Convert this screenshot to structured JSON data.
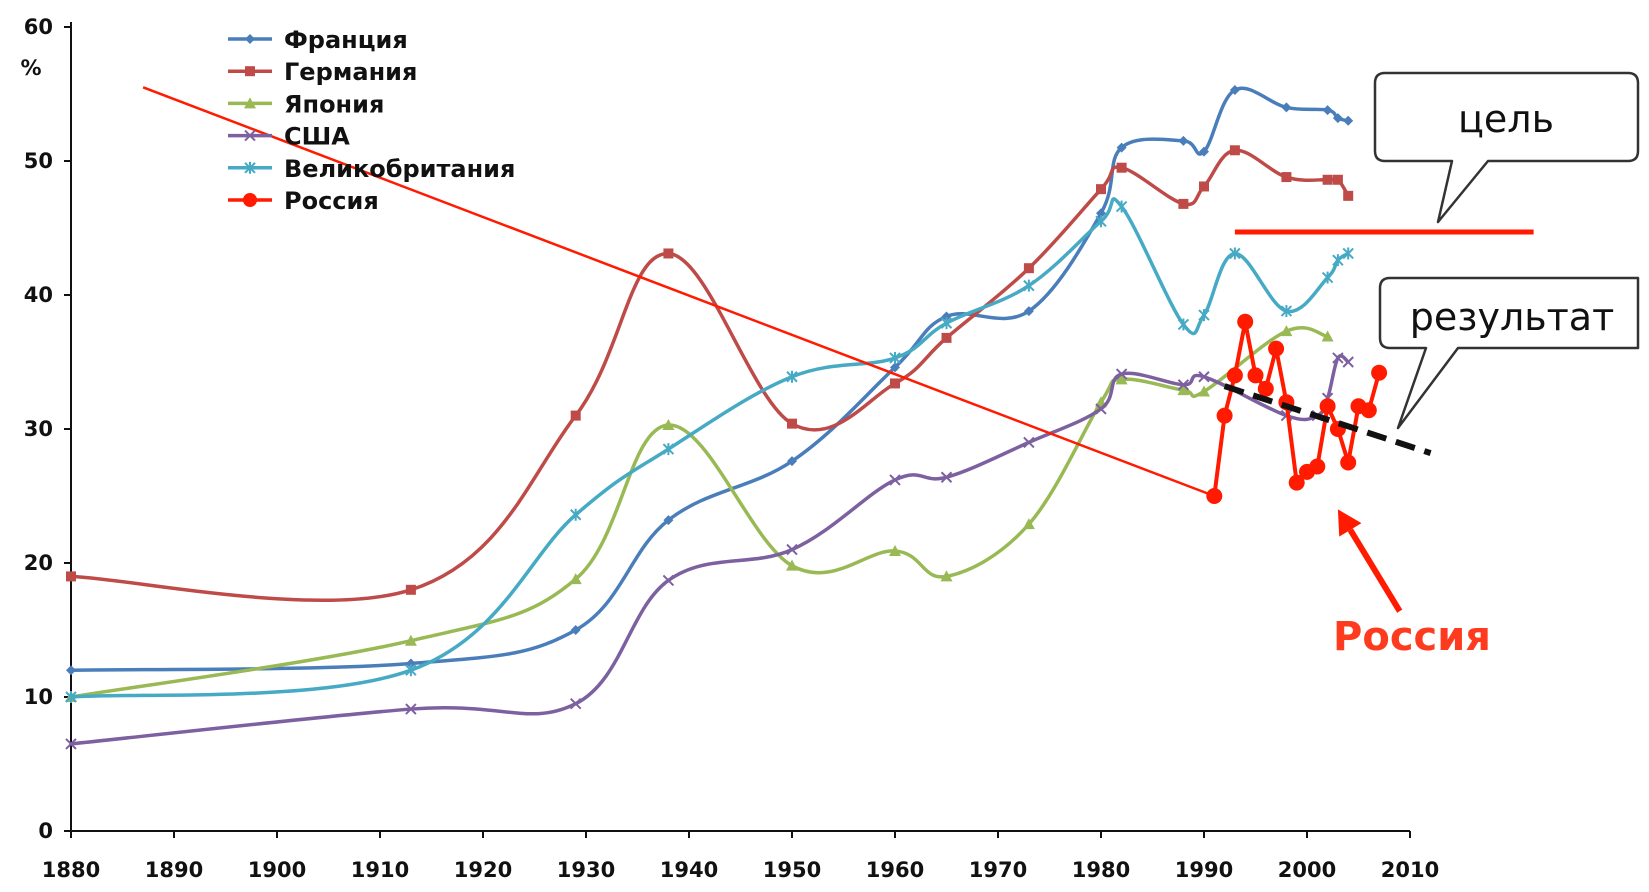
{
  "chart_data": {
    "type": "line",
    "ylabel": "%",
    "xlim": [
      1880,
      2010
    ],
    "ylim": [
      0,
      60
    ],
    "x_ticks": [
      "1880",
      "1890",
      "1900",
      "1910",
      "1920",
      "1930",
      "1940",
      "1950",
      "1960",
      "1970",
      "1980",
      "1990",
      "2000",
      "2010"
    ],
    "y_ticks": [
      "0",
      "10",
      "20",
      "30",
      "40",
      "50",
      "60"
    ],
    "grid": false,
    "legend_position": "top-left",
    "series": [
      {
        "name": "Франция",
        "color": "#4a7ebb",
        "marker": "diamond",
        "points": [
          [
            1880,
            12
          ],
          [
            1913,
            12.5
          ],
          [
            1929,
            15
          ],
          [
            1938,
            23.2
          ],
          [
            1950,
            27.6
          ],
          [
            1960,
            34.6
          ],
          [
            1965,
            38.4
          ],
          [
            1973,
            38.8
          ],
          [
            1980,
            46.1
          ],
          [
            1982,
            51
          ],
          [
            1988,
            51.5
          ],
          [
            1990,
            50.7
          ],
          [
            1993,
            55.3
          ],
          [
            1998,
            54
          ],
          [
            2002,
            53.8
          ],
          [
            2003,
            53.2
          ],
          [
            2004,
            53
          ]
        ]
      },
      {
        "name": "Германия",
        "color": "#be4b48",
        "marker": "square",
        "points": [
          [
            1880,
            19
          ],
          [
            1913,
            18
          ],
          [
            1929,
            31
          ],
          [
            1938,
            43.1
          ],
          [
            1950,
            30.4
          ],
          [
            1960,
            33.4
          ],
          [
            1965,
            36.8
          ],
          [
            1973,
            42
          ],
          [
            1980,
            47.9
          ],
          [
            1982,
            49.5
          ],
          [
            1988,
            46.8
          ],
          [
            1990,
            48.1
          ],
          [
            1993,
            50.8
          ],
          [
            1998,
            48.8
          ],
          [
            2002,
            48.6
          ],
          [
            2003,
            48.6
          ],
          [
            2004,
            47.4
          ]
        ]
      },
      {
        "name": "Япония",
        "color": "#98b954",
        "marker": "triangle",
        "points": [
          [
            1880,
            10
          ],
          [
            1913,
            14.2
          ],
          [
            1929,
            18.8
          ],
          [
            1938,
            30.3
          ],
          [
            1950,
            19.8
          ],
          [
            1960,
            20.9
          ],
          [
            1965,
            19
          ],
          [
            1973,
            22.9
          ],
          [
            1980,
            32.0
          ],
          [
            1982,
            33.7
          ],
          [
            1988,
            32.9
          ],
          [
            1990,
            32.8
          ],
          [
            1998,
            37.3
          ],
          [
            2002,
            36.9
          ]
        ]
      },
      {
        "name": "США",
        "color": "#7d60a0",
        "marker": "x",
        "points": [
          [
            1880,
            6.5
          ],
          [
            1913,
            9.1
          ],
          [
            1929,
            9.5
          ],
          [
            1938,
            18.7
          ],
          [
            1950,
            21
          ],
          [
            1960,
            26.2
          ],
          [
            1965,
            26.4
          ],
          [
            1973,
            29
          ],
          [
            1980,
            31.5
          ],
          [
            1982,
            34.1
          ],
          [
            1988,
            33.3
          ],
          [
            1990,
            33.9
          ],
          [
            1998,
            31
          ],
          [
            2001,
            31
          ],
          [
            2002,
            32.3
          ],
          [
            2003,
            35.3
          ],
          [
            2004,
            35
          ]
        ]
      },
      {
        "name": "Великобритания",
        "color": "#46aac5",
        "marker": "star",
        "points": [
          [
            1880,
            10
          ],
          [
            1913,
            12
          ],
          [
            1929,
            23.6
          ],
          [
            1938,
            28.5
          ],
          [
            1950,
            33.9
          ],
          [
            1960,
            35.3
          ],
          [
            1965,
            37.9
          ],
          [
            1973,
            40.7
          ],
          [
            1980,
            45.5
          ],
          [
            1982,
            46.6
          ],
          [
            1988,
            37.8
          ],
          [
            1990,
            38.5
          ],
          [
            1993,
            43.1
          ],
          [
            1998,
            38.8
          ],
          [
            2002,
            41.3
          ],
          [
            2003,
            42.6
          ],
          [
            2004,
            43.1
          ]
        ]
      },
      {
        "name": "Россия",
        "color": "#ff1a00",
        "marker": "circle",
        "points": [
          [
            1991,
            25
          ],
          [
            1992,
            31
          ],
          [
            1993,
            34
          ],
          [
            1994,
            38
          ],
          [
            1995,
            34
          ],
          [
            1996,
            33
          ],
          [
            1997,
            36
          ],
          [
            1998,
            32
          ],
          [
            1999,
            26
          ],
          [
            2000,
            26.8
          ],
          [
            2001,
            27.2
          ],
          [
            2002,
            31.7
          ],
          [
            2003,
            30
          ],
          [
            2004,
            27.5
          ],
          [
            2005,
            31.7
          ],
          [
            2006,
            31.4
          ],
          [
            2007,
            34.2
          ]
        ]
      }
    ],
    "annotations": {
      "target_text": "цель",
      "target_level": 44.7,
      "target_x": [
        1993,
        2022
      ],
      "result_text": "результат",
      "russia_text": "Россия",
      "trend_line": [
        [
          1992,
          33.2
        ],
        [
          2012,
          28.2
        ]
      ],
      "divider_line": [
        [
          1887,
          55.5
        ],
        [
          1991,
          25
        ]
      ],
      "arrow": {
        "from": [
          2009,
          16.4
        ],
        "to": [
          2003,
          24
        ]
      }
    }
  },
  "colors": {
    "axis": "#111111",
    "annotation_red": "#ff1a00",
    "russia_label": "#ff3b1f",
    "trend": "#111111",
    "callout_border": "#333333"
  }
}
